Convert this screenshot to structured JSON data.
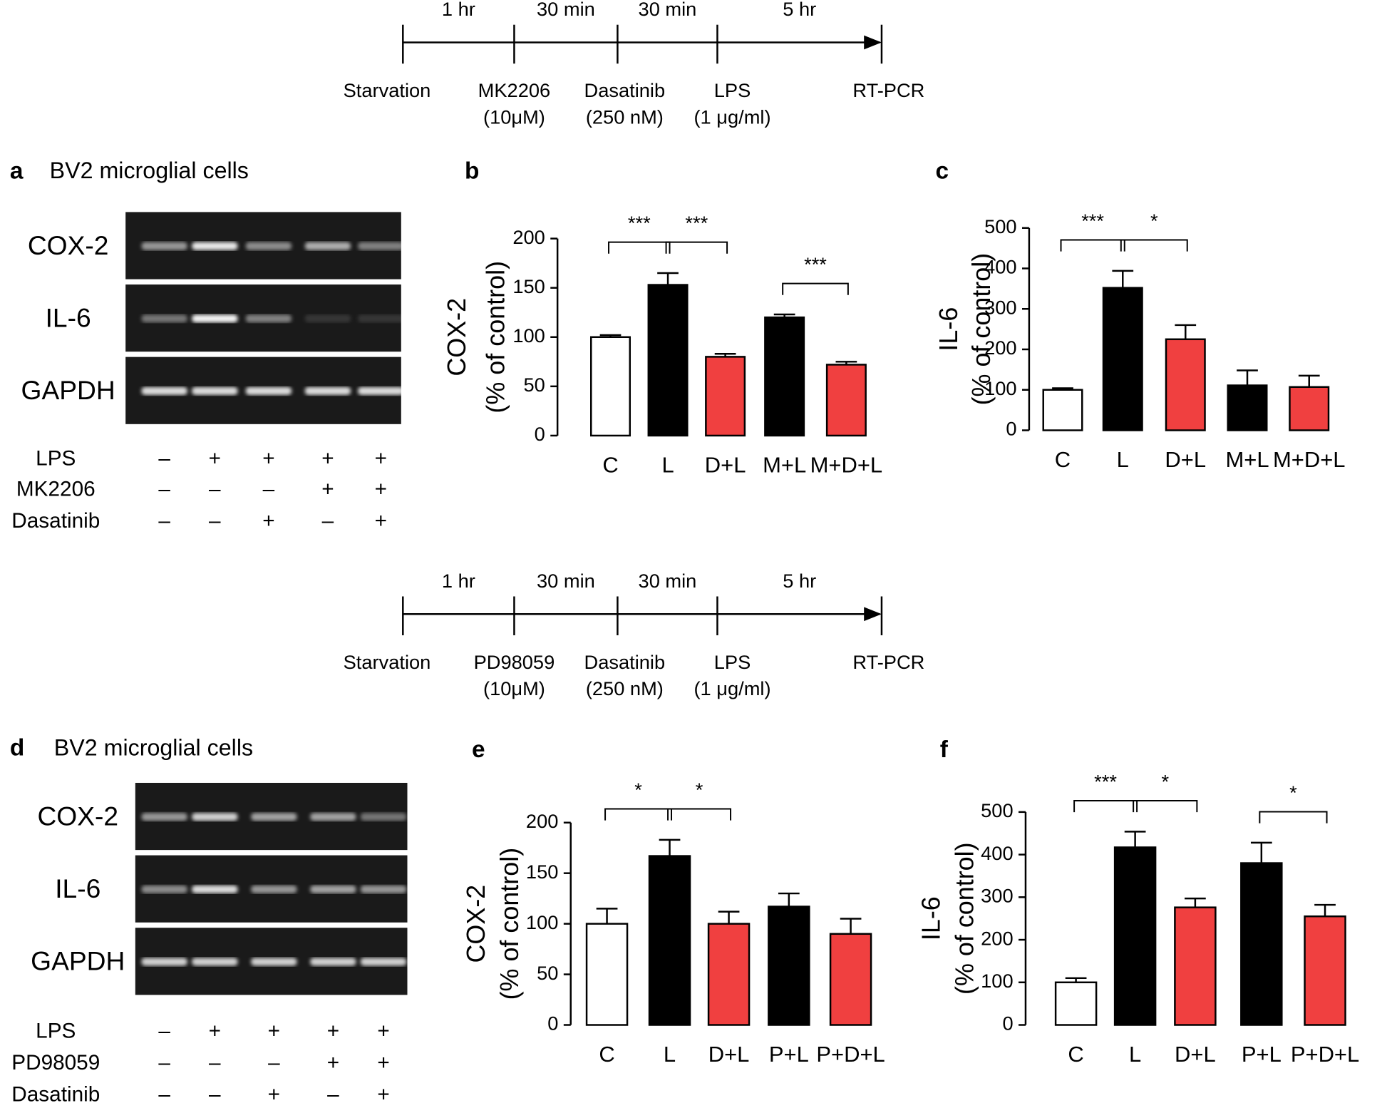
{
  "timelines": [
    {
      "durations": [
        "1 hr",
        "30 min",
        "30 min",
        "5 hr"
      ],
      "steps": [
        [
          "Starvation"
        ],
        [
          "MK2206",
          "(10μM)"
        ],
        [
          "Dasatinib",
          "(250 nM)"
        ],
        [
          "LPS",
          "(1 μg/ml)"
        ],
        [
          "RT-PCR"
        ]
      ]
    },
    {
      "durations": [
        "1 hr",
        "30 min",
        "30 min",
        "5 hr"
      ],
      "steps": [
        [
          "Starvation"
        ],
        [
          "PD98059",
          "(10μM)"
        ],
        [
          "Dasatinib",
          "(250 nM)"
        ],
        [
          "LPS",
          "(1 μg/ml)"
        ],
        [
          "RT-PCR"
        ]
      ]
    }
  ],
  "gels": [
    {
      "panel": "a",
      "title": "BV2 microglial cells",
      "lanes": [
        "COX-2",
        "IL-6",
        "GAPDH"
      ],
      "treatments": [
        {
          "name": "LPS",
          "signs": [
            "–",
            "+",
            "+",
            "+",
            "+"
          ]
        },
        {
          "name": "MK2206",
          "signs": [
            "–",
            "–",
            "–",
            "+",
            "+"
          ]
        },
        {
          "name": "Dasatinib",
          "signs": [
            "–",
            "–",
            "+",
            "–",
            "+"
          ]
        }
      ]
    },
    {
      "panel": "d",
      "title": "BV2 microglial cells",
      "lanes": [
        "COX-2",
        "IL-6",
        "GAPDH"
      ],
      "treatments": [
        {
          "name": "LPS",
          "signs": [
            "–",
            "+",
            "+",
            "+",
            "+"
          ]
        },
        {
          "name": "PD98059",
          "signs": [
            "–",
            "–",
            "–",
            "+",
            "+"
          ]
        },
        {
          "name": "Dasatinib",
          "signs": [
            "–",
            "–",
            "+",
            "–",
            "+"
          ]
        }
      ]
    }
  ],
  "chart_data": [
    {
      "type": "bar",
      "panel": "b",
      "ylabel": [
        "COX-2",
        "(% of control)"
      ],
      "categories": [
        "C",
        "L",
        "D+L",
        "M+L",
        "M+D+L"
      ],
      "values": [
        100,
        153,
        80,
        120,
        72
      ],
      "errors": [
        2,
        12,
        3,
        3,
        3
      ],
      "colors": [
        "#ffffff",
        "#000000",
        "#f04040",
        "#000000",
        "#f04040"
      ],
      "ylim": [
        0,
        200
      ],
      "yticks": [
        0,
        50,
        100,
        150,
        200
      ],
      "annotations": [
        {
          "text": "***",
          "between": [
            "C",
            "L"
          ]
        },
        {
          "text": "***",
          "between": [
            "L",
            "D+L"
          ]
        },
        {
          "text": "***",
          "between": [
            "M+L",
            "M+D+L"
          ]
        }
      ]
    },
    {
      "type": "bar",
      "panel": "c",
      "ylabel": [
        "IL-6",
        "(% of control)"
      ],
      "categories": [
        "C",
        "L",
        "D+L",
        "M+L",
        "M+D+L"
      ],
      "values": [
        100,
        352,
        225,
        111,
        107
      ],
      "errors": [
        4,
        42,
        35,
        37,
        28
      ],
      "colors": [
        "#ffffff",
        "#000000",
        "#f04040",
        "#000000",
        "#f04040"
      ],
      "ylim": [
        0,
        500
      ],
      "yticks": [
        0,
        100,
        200,
        300,
        400,
        500
      ],
      "annotations": [
        {
          "text": "***",
          "between": [
            "C",
            "L"
          ]
        },
        {
          "text": "*",
          "between": [
            "L",
            "D+L"
          ]
        }
      ]
    },
    {
      "type": "bar",
      "panel": "e",
      "ylabel": [
        "COX-2",
        "(% of control)"
      ],
      "categories": [
        "C",
        "L",
        "D+L",
        "P+L",
        "P+D+L"
      ],
      "values": [
        100,
        167,
        100,
        117,
        90
      ],
      "errors": [
        15,
        16,
        12,
        13,
        15
      ],
      "colors": [
        "#ffffff",
        "#000000",
        "#f04040",
        "#000000",
        "#f04040"
      ],
      "ylim": [
        0,
        200
      ],
      "yticks": [
        0,
        50,
        100,
        150,
        200
      ],
      "annotations": [
        {
          "text": "*",
          "between": [
            "C",
            "L"
          ]
        },
        {
          "text": "*",
          "between": [
            "L",
            "D+L"
          ]
        }
      ]
    },
    {
      "type": "bar",
      "panel": "f",
      "ylabel": [
        "IL-6",
        "(% of control)"
      ],
      "categories": [
        "C",
        "L",
        "D+L",
        "P+L",
        "P+D+L"
      ],
      "values": [
        100,
        417,
        276,
        380,
        255
      ],
      "errors": [
        10,
        37,
        21,
        48,
        27
      ],
      "colors": [
        "#ffffff",
        "#000000",
        "#f04040",
        "#000000",
        "#f04040"
      ],
      "ylim": [
        0,
        500
      ],
      "yticks": [
        0,
        100,
        200,
        300,
        400,
        500
      ],
      "annotations": [
        {
          "text": "***",
          "between": [
            "C",
            "L"
          ]
        },
        {
          "text": "*",
          "between": [
            "L",
            "D+L"
          ]
        },
        {
          "text": "*",
          "between": [
            "P+L",
            "P+D+L"
          ]
        }
      ]
    }
  ]
}
